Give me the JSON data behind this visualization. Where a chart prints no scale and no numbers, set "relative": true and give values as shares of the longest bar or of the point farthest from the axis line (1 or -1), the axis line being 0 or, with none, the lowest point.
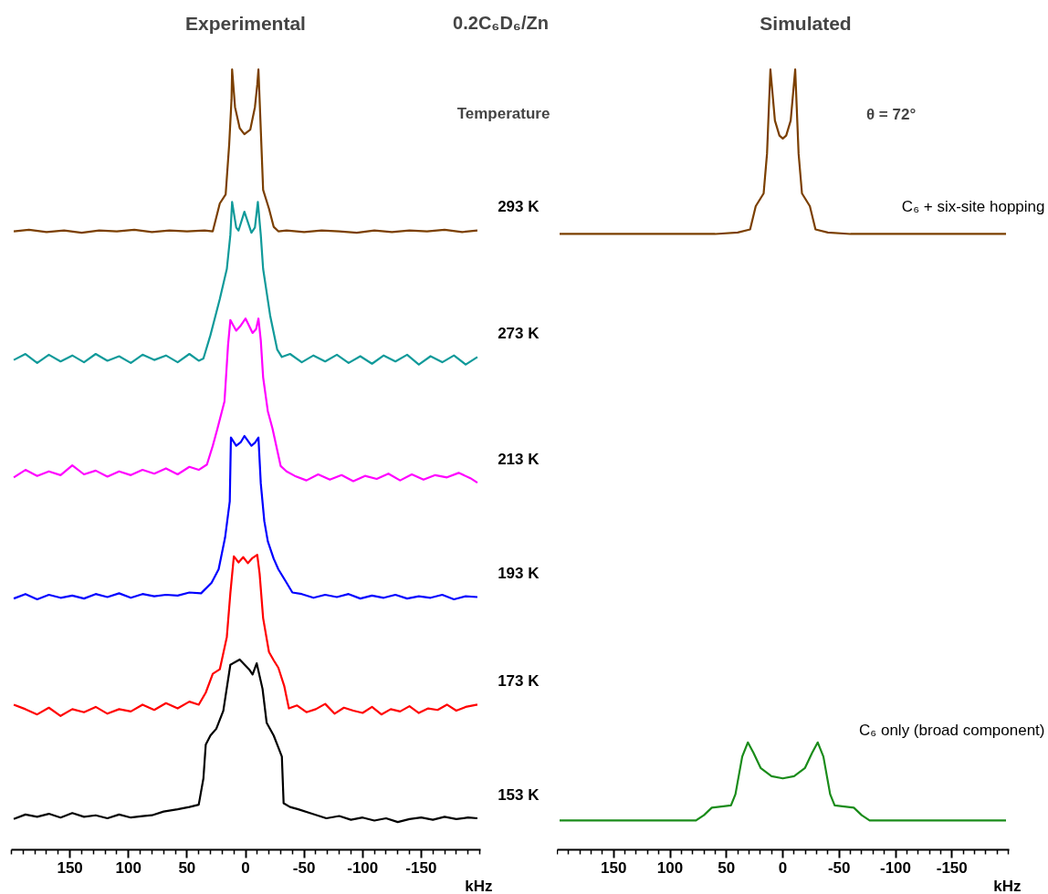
{
  "chart_data": [
    {
      "type": "line",
      "title": "Experimental",
      "xlabel": "kHz",
      "relative": true,
      "grid": false,
      "line_style": "solid",
      "annotations": [
        "0.2C₆D₆/Zn",
        "Temperature"
      ],
      "xlim": [
        200,
        -200
      ],
      "xticks": [
        150,
        100,
        50,
        0,
        -50,
        -100,
        -150
      ],
      "series": [
        {
          "name": "293 K",
          "color": "#7b3f00",
          "x": [
            198,
            185,
            170,
            155,
            140,
            125,
            110,
            95,
            80,
            65,
            50,
            35,
            28,
            22,
            17,
            14,
            12,
            11.5,
            9,
            5,
            1,
            -4,
            -8,
            -10,
            -11,
            -12.5,
            -15,
            -20,
            -24,
            -28,
            -35,
            -50,
            -65,
            -80,
            -95,
            -110,
            -125,
            -140,
            -155,
            -170,
            -185,
            -198
          ],
          "values": [
            0.785,
            0.787,
            0.784,
            0.786,
            0.783,
            0.786,
            0.785,
            0.787,
            0.784,
            0.786,
            0.785,
            0.786,
            0.785,
            0.822,
            0.834,
            0.9,
            0.96,
            1.0,
            0.95,
            0.922,
            0.914,
            0.92,
            0.95,
            0.98,
            1.0,
            0.94,
            0.84,
            0.815,
            0.791,
            0.785,
            0.786,
            0.784,
            0.786,
            0.785,
            0.783,
            0.786,
            0.784,
            0.786,
            0.785,
            0.787,
            0.784,
            0.786
          ]
        },
        {
          "name": "273 K",
          "color": "#109a9a",
          "x": [
            198,
            188,
            178,
            168,
            158,
            148,
            138,
            128,
            118,
            108,
            98,
            88,
            78,
            68,
            58,
            48,
            40,
            36,
            30,
            22,
            16,
            13,
            11.5,
            8,
            6,
            1,
            -5,
            -8,
            -10.5,
            -13,
            -15,
            -21,
            -27,
            -31,
            -38,
            -48,
            -58,
            -68,
            -78,
            -88,
            -98,
            -108,
            -118,
            -128,
            -138,
            -148,
            -158,
            -168,
            -178,
            -188,
            -198
          ],
          "values": [
            0.614,
            0.622,
            0.61,
            0.621,
            0.612,
            0.62,
            0.611,
            0.622,
            0.613,
            0.619,
            0.61,
            0.621,
            0.614,
            0.62,
            0.611,
            0.622,
            0.613,
            0.616,
            0.647,
            0.695,
            0.735,
            0.78,
            0.824,
            0.79,
            0.786,
            0.811,
            0.783,
            0.79,
            0.824,
            0.78,
            0.735,
            0.673,
            0.628,
            0.618,
            0.622,
            0.611,
            0.62,
            0.612,
            0.621,
            0.61,
            0.619,
            0.609,
            0.62,
            0.612,
            0.621,
            0.608,
            0.619,
            0.611,
            0.62,
            0.608,
            0.618
          ]
        },
        {
          "name": "213 K",
          "color": "#ff00ff",
          "x": [
            198,
            188,
            178,
            168,
            158,
            148,
            138,
            128,
            118,
            108,
            98,
            88,
            78,
            68,
            58,
            48,
            40,
            33,
            28,
            24,
            18,
            15,
            13,
            8,
            4,
            0,
            -6,
            -9,
            -11,
            -13,
            -15,
            -19,
            -23,
            -30,
            -35,
            -42,
            -52,
            -62,
            -72,
            -82,
            -92,
            -102,
            -112,
            -122,
            -132,
            -142,
            -152,
            -162,
            -172,
            -182,
            -192,
            -198
          ],
          "values": [
            0.458,
            0.468,
            0.46,
            0.466,
            0.461,
            0.474,
            0.462,
            0.467,
            0.459,
            0.466,
            0.461,
            0.468,
            0.463,
            0.47,
            0.462,
            0.472,
            0.468,
            0.475,
            0.5,
            0.523,
            0.559,
            0.633,
            0.667,
            0.653,
            0.66,
            0.669,
            0.65,
            0.655,
            0.669,
            0.64,
            0.591,
            0.546,
            0.523,
            0.473,
            0.466,
            0.46,
            0.454,
            0.462,
            0.455,
            0.461,
            0.453,
            0.46,
            0.456,
            0.463,
            0.454,
            0.462,
            0.455,
            0.461,
            0.458,
            0.464,
            0.457,
            0.451
          ]
        },
        {
          "name": "193 K",
          "color": "#0000ff",
          "x": [
            198,
            188,
            178,
            168,
            158,
            148,
            138,
            128,
            118,
            108,
            98,
            88,
            78,
            68,
            58,
            48,
            38,
            29,
            23,
            17.5,
            13.5,
            12.5,
            8,
            4,
            1,
            -5,
            -8,
            -11,
            -13,
            -16,
            -19,
            -24,
            -28,
            -35,
            -40,
            -48,
            -58,
            -68,
            -78,
            -88,
            -98,
            -108,
            -118,
            -128,
            -138,
            -148,
            -158,
            -168,
            -178,
            -188,
            -198
          ],
          "values": [
            0.297,
            0.303,
            0.296,
            0.302,
            0.298,
            0.301,
            0.297,
            0.303,
            0.299,
            0.304,
            0.298,
            0.303,
            0.3,
            0.302,
            0.301,
            0.305,
            0.304,
            0.318,
            0.336,
            0.378,
            0.426,
            0.511,
            0.5,
            0.505,
            0.513,
            0.5,
            0.504,
            0.511,
            0.45,
            0.4,
            0.373,
            0.35,
            0.336,
            0.318,
            0.305,
            0.303,
            0.298,
            0.302,
            0.299,
            0.303,
            0.297,
            0.301,
            0.298,
            0.302,
            0.297,
            0.3,
            0.298,
            0.302,
            0.296,
            0.3,
            0.299
          ]
        },
        {
          "name": "173 K",
          "color": "#ff0000",
          "x": [
            198,
            188,
            178,
            168,
            158,
            148,
            138,
            128,
            118,
            108,
            98,
            88,
            78,
            68,
            58,
            48,
            40,
            34,
            28,
            22,
            16,
            13,
            10,
            6,
            2,
            -2,
            -6,
            -10,
            -12,
            -15,
            -20,
            -24,
            -28,
            -33,
            -37,
            -44,
            -52,
            -60,
            -68,
            -76,
            -84,
            -92,
            -100,
            -108,
            -116,
            -124,
            -132,
            -140,
            -148,
            -156,
            -164,
            -172,
            -180,
            -188,
            -198
          ],
          "values": [
            0.156,
            0.15,
            0.143,
            0.152,
            0.141,
            0.15,
            0.146,
            0.153,
            0.144,
            0.15,
            0.147,
            0.156,
            0.149,
            0.158,
            0.151,
            0.16,
            0.156,
            0.172,
            0.197,
            0.203,
            0.246,
            0.304,
            0.353,
            0.345,
            0.352,
            0.344,
            0.351,
            0.355,
            0.33,
            0.271,
            0.226,
            0.215,
            0.205,
            0.181,
            0.151,
            0.155,
            0.146,
            0.15,
            0.157,
            0.144,
            0.152,
            0.148,
            0.145,
            0.153,
            0.143,
            0.15,
            0.147,
            0.154,
            0.145,
            0.151,
            0.149,
            0.156,
            0.148,
            0.153,
            0.156
          ]
        },
        {
          "name": "153 K",
          "color": "#000000",
          "x": [
            198,
            188,
            178,
            168,
            158,
            148,
            138,
            128,
            118,
            108,
            98,
            88,
            80,
            70,
            58,
            48,
            40,
            36,
            34,
            30,
            25,
            19,
            13,
            5,
            -3,
            -6,
            -9.5,
            -14.5,
            -18,
            -24,
            -28,
            -31,
            -32.5,
            -38,
            -45,
            -55,
            -69,
            -80,
            -90,
            -100,
            -110,
            -120,
            -130,
            -140,
            -150,
            -160,
            -170,
            -180,
            -190,
            -198
          ],
          "values": [
            0.004,
            0.01,
            0.007,
            0.011,
            0.006,
            0.012,
            0.007,
            0.009,
            0.005,
            0.01,
            0.006,
            0.008,
            0.009,
            0.014,
            0.017,
            0.02,
            0.023,
            0.058,
            0.103,
            0.115,
            0.124,
            0.148,
            0.209,
            0.216,
            0.203,
            0.196,
            0.211,
            0.177,
            0.132,
            0.115,
            0.099,
            0.087,
            0.025,
            0.02,
            0.017,
            0.012,
            0.005,
            0.008,
            0.003,
            0.006,
            0.002,
            0.005,
            0.0,
            0.004,
            0.006,
            0.003,
            0.007,
            0.004,
            0.006,
            0.005
          ]
        }
      ]
    },
    {
      "type": "line",
      "title": "Simulated",
      "xlabel": "kHz",
      "relative": true,
      "grid": false,
      "line_style": "solid",
      "annotations": [
        "θ = 72°"
      ],
      "xlim": [
        200,
        -200
      ],
      "xticks": [
        150,
        100,
        50,
        0,
        -50,
        -100,
        -150
      ],
      "series": [
        {
          "name": "C₆ + six-site hopping",
          "color": "#7b3f00",
          "x": [
            198,
            100,
            60,
            40,
            29,
            24,
            17,
            14,
            11,
            7,
            3,
            0,
            -3,
            -7,
            -11,
            -14,
            -17,
            -24,
            -29,
            -40,
            -60,
            -100,
            -198
          ],
          "values": [
            0.781,
            0.781,
            0.781,
            0.783,
            0.787,
            0.818,
            0.835,
            0.888,
            1.0,
            0.932,
            0.912,
            0.908,
            0.912,
            0.932,
            1.0,
            0.888,
            0.835,
            0.818,
            0.787,
            0.783,
            0.781,
            0.781,
            0.781
          ]
        },
        {
          "name": "C₆ only (broad component)",
          "color": "#1a8c1a",
          "x": [
            198,
            100,
            77,
            70,
            63,
            46,
            42,
            36,
            31,
            26,
            19.7,
            10,
            0,
            -10,
            -19.7,
            -26,
            -31,
            -36,
            -42,
            -46,
            -63,
            -70,
            -77,
            -100,
            -198
          ],
          "values": [
            0,
            0,
            0,
            0.007,
            0.017,
            0.02,
            0.035,
            0.085,
            0.104,
            0.09,
            0.07,
            0.059,
            0.056,
            0.059,
            0.07,
            0.09,
            0.104,
            0.085,
            0.035,
            0.02,
            0.017,
            0.007,
            0,
            0,
            0
          ]
        }
      ]
    }
  ]
}
